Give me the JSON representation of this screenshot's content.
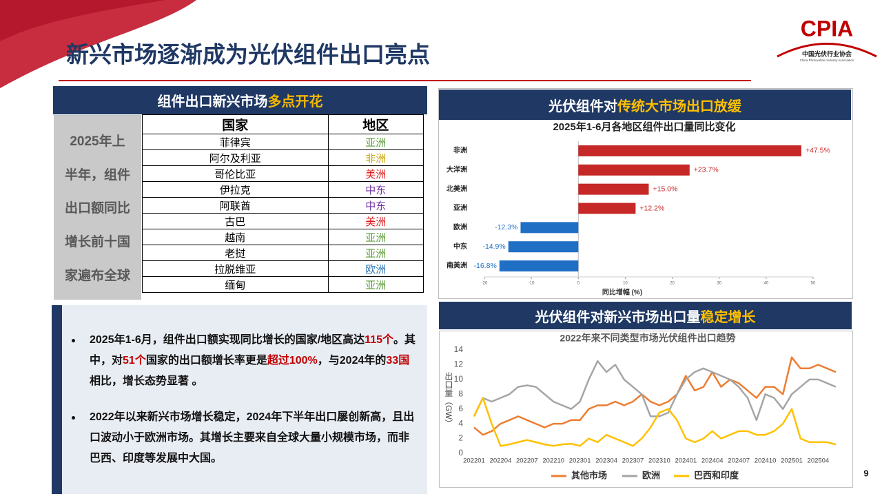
{
  "logo": {
    "text": "CPIA",
    "subtitle": "中国光伏行业协会",
    "english": "China Photovoltaic Industry Association"
  },
  "title": "新兴市场逐渐成为光伏组件出口亮点",
  "left_panel": {
    "header": [
      {
        "text": "组件出口新兴市场"
      },
      {
        "text": "多点开花",
        "color": "#f5b800"
      }
    ],
    "summary_lines": [
      "2025年上",
      "半年，组件",
      "出口额同比",
      "增长前十国",
      "家遍布全球"
    ],
    "table": {
      "columns": [
        "国家",
        "地区"
      ],
      "rows": [
        [
          "菲律宾",
          "亚洲"
        ],
        [
          "阿尔及利亚",
          "非洲"
        ],
        [
          "哥伦比亚",
          "美洲"
        ],
        [
          "伊拉克",
          "中东"
        ],
        [
          "阿联酋",
          "中东"
        ],
        [
          "古巴",
          "美洲"
        ],
        [
          "越南",
          "亚洲"
        ],
        [
          "老挝",
          "亚洲"
        ],
        [
          "拉脱维亚",
          "欧洲"
        ],
        [
          "缅甸",
          "亚洲"
        ]
      ],
      "region_colors": [
        "#5b9b3a",
        "#c9a400",
        "#e02020",
        "#7030a0",
        "#7030a0",
        "#e02020",
        "#5b9b3a",
        "#5b9b3a",
        "#2e75b6",
        "#5b9b3a"
      ]
    }
  },
  "bullets": [
    {
      "segments": [
        {
          "text": "2025年1-6月，组件出口额实现同比增长的国家/地区高达"
        },
        {
          "text": "115个",
          "color": "#c00000"
        },
        {
          "text": "。其中，对"
        },
        {
          "text": "51个",
          "color": "#c00000"
        },
        {
          "text": "国家的出口额增长率更是"
        },
        {
          "text": "超过100%",
          "color": "#c00000"
        },
        {
          "text": "，与2024年的"
        },
        {
          "text": "33国",
          "color": "#c00000"
        },
        {
          "text": "相比，增长态势显著 。"
        }
      ]
    },
    {
      "segments": [
        {
          "text": "2022年以来新兴市场增长稳定，2024年下半年出口屡创新高，且出口波动小于欧洲市场。其增长主要来自全球大量小规模市场，而非巴西、印度等发展中大国。"
        }
      ]
    }
  ],
  "panels": [
    {
      "header": [
        {
          "text": "光伏组件对"
        },
        {
          "text": "传统大市场出口放缓",
          "color": "#ffc000"
        }
      ]
    },
    {
      "header": [
        {
          "text": "光伏组件对新兴市场出口量"
        },
        {
          "text": "稳定增长",
          "color": "#ffc000"
        }
      ]
    }
  ],
  "chart_data": [
    {
      "type": "bar",
      "orientation": "horizontal",
      "title": "2025年1-6月各地区组件出口量同比变化",
      "categories": [
        "非洲",
        "大洋洲",
        "北美洲",
        "亚洲",
        "欧洲",
        "中东",
        "南美洲"
      ],
      "values": [
        47.5,
        23.7,
        15.0,
        12.2,
        -12.3,
        -14.9,
        -16.8
      ],
      "value_labels": [
        "+47.5%",
        "+23.7%",
        "+15.0%",
        "+12.2%",
        "-12.3%",
        "-14.9%",
        "-16.8%"
      ],
      "colors": [
        "#c62828",
        "#c62828",
        "#c62828",
        "#c62828",
        "#1f6fc5",
        "#1f6fc5",
        "#1f6fc5"
      ],
      "xlabel": "同比增幅 (%)",
      "xlim": [
        -20,
        50
      ],
      "xticks": [
        -20,
        -10,
        0,
        10,
        20,
        30,
        40,
        50
      ]
    },
    {
      "type": "line",
      "title": "2022年来不同类型市场光伏组件出口趋势",
      "ylabel": "出口量（GW）",
      "categories": [
        "202201",
        null,
        null,
        "202204",
        null,
        null,
        "202207",
        null,
        null,
        "202210",
        null,
        null,
        "202301",
        null,
        null,
        "202304",
        null,
        null,
        "202307",
        null,
        null,
        "202310",
        null,
        null,
        "202401",
        null,
        null,
        "202404",
        null,
        null,
        "202407",
        null,
        null,
        "202410",
        null,
        null,
        "202501",
        null,
        null,
        "202504",
        null,
        null
      ],
      "series": [
        {
          "name": "其他市场",
          "color": "#ed7d31",
          "values": [
            3.5,
            2.5,
            3,
            4,
            4.5,
            5,
            4.5,
            4,
            3.5,
            4,
            4,
            4.5,
            4.5,
            6,
            6.5,
            6.5,
            7,
            6.5,
            7,
            8,
            7,
            6.5,
            7,
            8,
            10.5,
            8.5,
            9,
            11,
            9,
            10,
            9.5,
            8.5,
            7.5,
            9,
            9,
            8,
            13,
            11.5,
            11.5,
            12,
            11.5,
            11
          ]
        },
        {
          "name": "欧洲",
          "color": "#a5a5a5",
          "values": [
            5,
            7.5,
            7,
            7.5,
            8,
            9,
            9.2,
            9,
            8,
            7,
            6.5,
            6,
            7,
            10,
            12.5,
            11,
            12,
            10,
            9,
            8,
            5,
            5,
            5.5,
            8,
            10,
            11,
            11.5,
            11,
            10.5,
            10,
            9,
            7.5,
            4.5,
            8,
            7.5,
            6,
            8,
            9,
            10,
            10,
            9.5,
            9
          ]
        },
        {
          "name": "巴西和印度",
          "color": "#ffc000",
          "values": [
            5,
            7.5,
            4,
            1,
            1.2,
            1.5,
            1.8,
            1.5,
            1.2,
            1,
            1.2,
            1.3,
            1,
            2,
            1.5,
            2.5,
            2,
            1.5,
            1,
            2,
            3.5,
            5.5,
            6,
            4.5,
            2,
            1.5,
            2,
            3,
            2,
            2.5,
            3,
            3,
            2.5,
            2.5,
            3,
            4,
            6,
            2,
            1.5,
            1.5,
            1.5,
            1.2
          ]
        }
      ],
      "ylim": [
        0,
        14
      ],
      "yticks": [
        0,
        2,
        4,
        6,
        8,
        10,
        12,
        14
      ],
      "grid": false
    }
  ],
  "page_number": "9"
}
